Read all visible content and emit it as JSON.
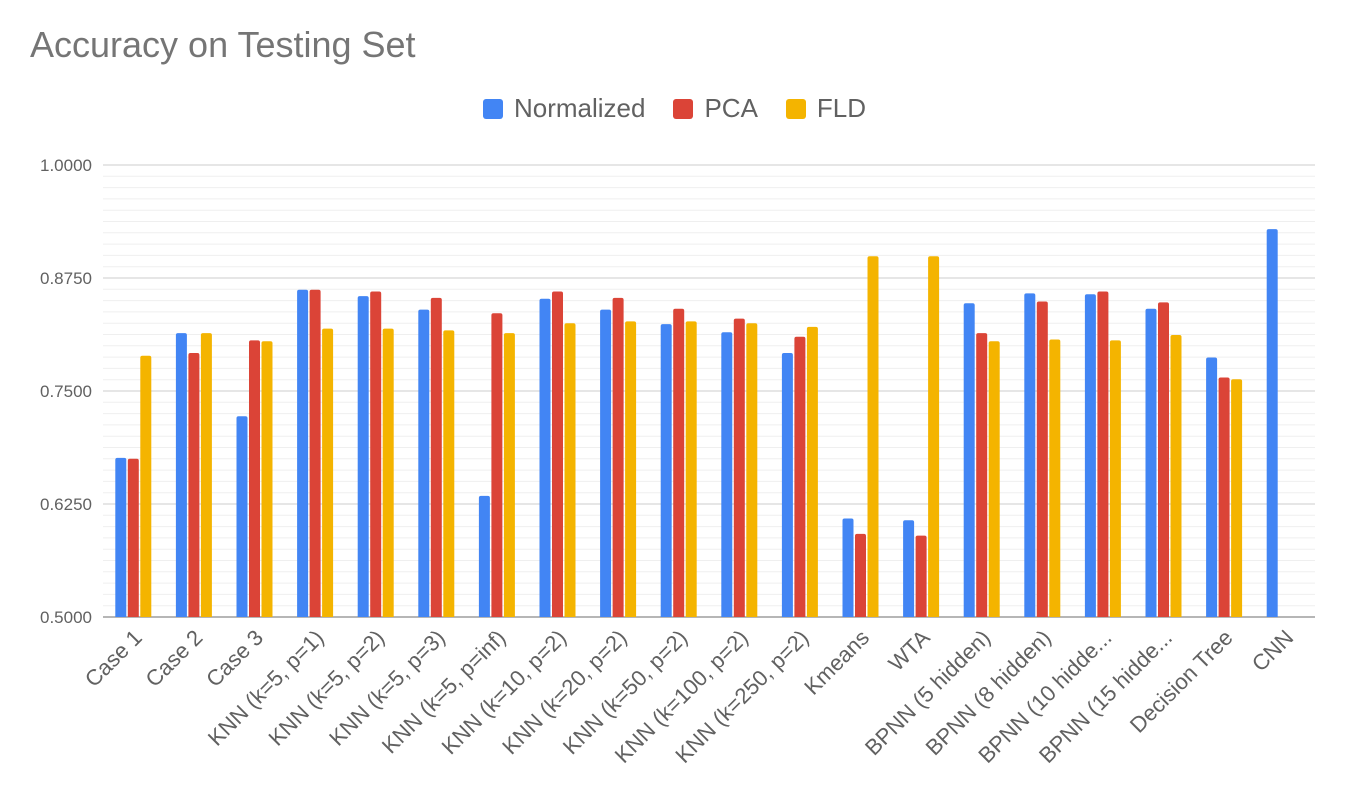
{
  "chart_data": {
    "type": "bar",
    "title": "Accuracy on Testing Set",
    "xlabel": "",
    "ylabel": "",
    "ylim": [
      0.5,
      1.0
    ],
    "yticks": [
      "0.5000",
      "0.6250",
      "0.7500",
      "0.8750",
      "1.0000"
    ],
    "grid": true,
    "legend_position": "top",
    "categories": [
      "Case 1",
      "Case 2",
      "Case 3",
      "KNN (k=5, p=1)",
      "KNN (k=5, p=2)",
      "KNN (k=5, p=3)",
      "KNN (k=5, p=inf)",
      "KNN (k=10, p=2)",
      "KNN (k=20, p=2)",
      "KNN (k=50, p=2)",
      "KNN (k=100, p=2)",
      "KNN (k=250, p=2)",
      "Kmeans",
      "WTA",
      "BPNN (5 hidden)",
      "BPNN (8 hidden)",
      "BPNN (10 hidde...",
      "BPNN (15 hidde...",
      "Decision Tree",
      "CNN"
    ],
    "series": [
      {
        "name": "Normalized",
        "color": "#4285f4",
        "values": [
          0.676,
          0.814,
          0.722,
          0.862,
          0.855,
          0.84,
          0.634,
          0.852,
          0.84,
          0.824,
          0.815,
          0.792,
          0.609,
          0.607,
          0.847,
          0.858,
          0.857,
          0.841,
          0.787,
          0.929
        ]
      },
      {
        "name": "PCA",
        "color": "#db4437",
        "values": [
          0.675,
          0.792,
          0.806,
          0.862,
          0.86,
          0.853,
          0.836,
          0.86,
          0.853,
          0.841,
          0.83,
          0.81,
          0.592,
          0.59,
          0.814,
          0.849,
          0.86,
          0.848,
          0.765,
          null
        ]
      },
      {
        "name": "FLD",
        "color": "#f4b400",
        "values": [
          0.789,
          0.814,
          0.805,
          0.819,
          0.819,
          0.817,
          0.814,
          0.825,
          0.827,
          0.827,
          0.825,
          0.821,
          0.899,
          0.899,
          0.805,
          0.807,
          0.806,
          0.812,
          0.763,
          null
        ]
      }
    ]
  }
}
